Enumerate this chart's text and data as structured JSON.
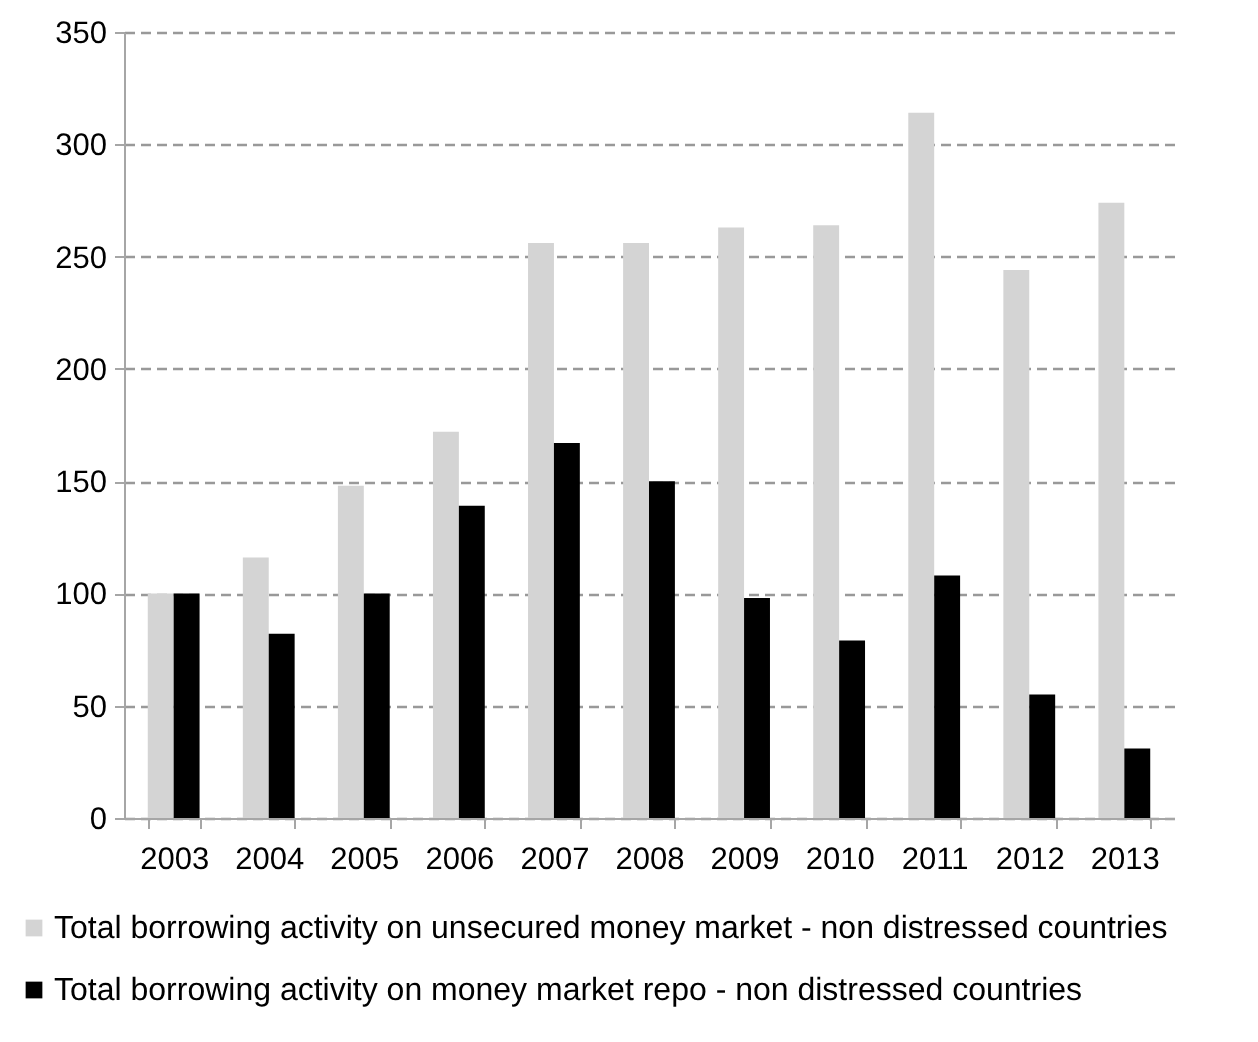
{
  "chart_data": {
    "type": "bar",
    "categories": [
      "2003",
      "2004",
      "2005",
      "2006",
      "2007",
      "2008",
      "2009",
      "2010",
      "2011",
      "2012",
      "2013"
    ],
    "series": [
      {
        "name": "Total borrowing activity on unsecured money market - non distressed countries",
        "color": "#d4d4d4",
        "values": [
          100,
          116,
          148,
          172,
          256,
          256,
          263,
          264,
          314,
          244,
          274
        ]
      },
      {
        "name": "Total borrowing activity on money market repo - non distressed countries",
        "color": "#000000",
        "values": [
          100,
          82,
          100,
          139,
          167,
          150,
          98,
          79,
          108,
          55,
          31
        ]
      }
    ],
    "ylim": [
      0,
      350
    ],
    "yticks": [
      0,
      50,
      100,
      150,
      200,
      250,
      300,
      350
    ],
    "grid": "y",
    "legend": "bottom"
  }
}
